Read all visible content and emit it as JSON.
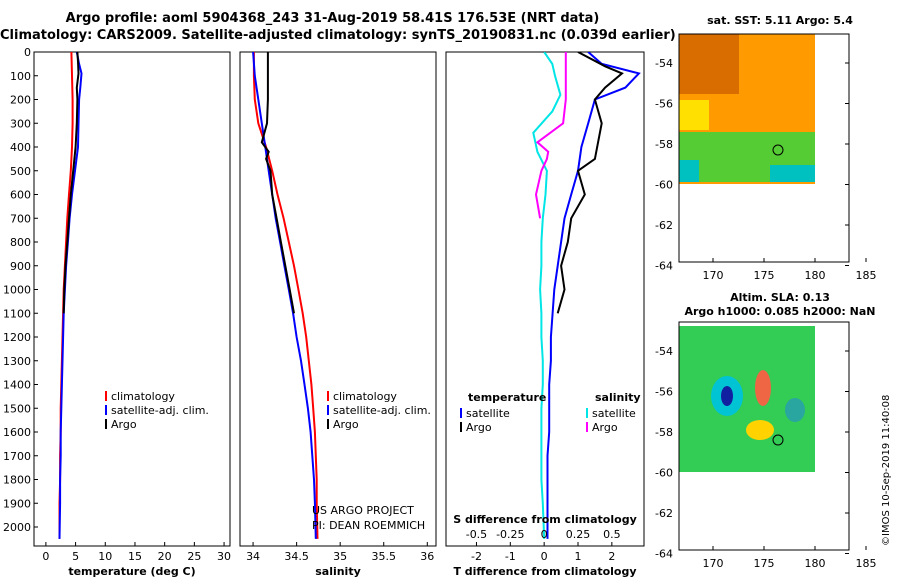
{
  "title": {
    "line1": "Argo profile: aoml 5904368_243 31-Aug-2019 58.41S 176.53E (NRT data)",
    "line2": "Climatology: CARS2009. Satellite-adjusted climatology: synTS_20190831.nc (0.039d earlier)"
  },
  "sst_map": {
    "title": "sat. SST: 5.11 Argo: 5.4",
    "xticks": [
      "170",
      "175",
      "180",
      "185"
    ],
    "yticks": [
      "-54",
      "-56",
      "-58",
      "-60",
      "-62",
      "-64"
    ]
  },
  "sla_map": {
    "title_line1": "Altim. SLA: 0.13",
    "title_line2": "Argo h1000: 0.085 h2000: NaN",
    "xticks": [
      "170",
      "175",
      "180",
      "185"
    ],
    "yticks": [
      "-54",
      "-56",
      "-58",
      "-60",
      "-62",
      "-64"
    ]
  },
  "credits": {
    "line1": "US ARGO PROJECT",
    "line2": "PI: DEAN ROEMMICH",
    "timestamp": "©IMOS 10-Sep-2019 11:40:08"
  },
  "colors": {
    "climatology": "#ff0000",
    "satellite": "#0000ff",
    "argo": "#000000",
    "salinity_satellite": "#00e5e5",
    "salinity_argo": "#ff00ff"
  },
  "chart_data": [
    {
      "type": "line",
      "xlabel": "temperature (deg C)",
      "xticks": [
        "0",
        "5",
        "10",
        "15",
        "20",
        "25",
        "30"
      ],
      "xlim": [
        -2,
        31
      ],
      "ylim": [
        0,
        2080
      ],
      "yticks": [
        "0",
        "100",
        "200",
        "300",
        "400",
        "500",
        "600",
        "700",
        "800",
        "900",
        "1000",
        "1100",
        "1200",
        "1300",
        "1400",
        "1500",
        "1600",
        "1700",
        "1800",
        "1900",
        "2000"
      ],
      "legend": [
        "climatology",
        "satellite-adj. clim.",
        "Argo"
      ],
      "series": [
        {
          "name": "climatology",
          "color": "#ff0000",
          "points": [
            [
              4.3,
              0
            ],
            [
              4.4,
              100
            ],
            [
              4.5,
              200
            ],
            [
              4.5,
              300
            ],
            [
              4.4,
              400
            ],
            [
              4.2,
              500
            ],
            [
              3.9,
              600
            ],
            [
              3.6,
              700
            ],
            [
              3.4,
              800
            ],
            [
              3.2,
              900
            ],
            [
              3.0,
              1000
            ],
            [
              2.9,
              1100
            ],
            [
              2.8,
              1200
            ],
            [
              2.7,
              1300
            ],
            [
              2.6,
              1400
            ],
            [
              2.5,
              1500
            ],
            [
              2.5,
              1600
            ],
            [
              2.4,
              1700
            ],
            [
              2.4,
              1800
            ],
            [
              2.3,
              1900
            ],
            [
              2.3,
              2050
            ]
          ]
        },
        {
          "name": "satellite-adj. clim.",
          "color": "#0000ff",
          "points": [
            [
              5.2,
              0
            ],
            [
              5.6,
              50
            ],
            [
              6.0,
              90
            ],
            [
              5.8,
              150
            ],
            [
              5.6,
              200
            ],
            [
              5.5,
              300
            ],
            [
              5.4,
              400
            ],
            [
              4.9,
              500
            ],
            [
              4.4,
              600
            ],
            [
              4.0,
              700
            ],
            [
              3.7,
              800
            ],
            [
              3.4,
              900
            ],
            [
              3.2,
              1000
            ],
            [
              3.0,
              1100
            ],
            [
              2.9,
              1200
            ],
            [
              2.8,
              1300
            ],
            [
              2.7,
              1400
            ],
            [
              2.6,
              1500
            ],
            [
              2.5,
              1600
            ],
            [
              2.5,
              1700
            ],
            [
              2.4,
              1800
            ],
            [
              2.4,
              1900
            ],
            [
              2.3,
              2050
            ]
          ]
        },
        {
          "name": "Argo",
          "color": "#000000",
          "points": [
            [
              5.3,
              0
            ],
            [
              5.4,
              40
            ],
            [
              5.5,
              90
            ],
            [
              5.2,
              150
            ],
            [
              5.3,
              200
            ],
            [
              5.2,
              300
            ],
            [
              5.0,
              400
            ],
            [
              4.6,
              500
            ],
            [
              4.2,
              600
            ],
            [
              3.9,
              700
            ],
            [
              3.6,
              800
            ],
            [
              3.3,
              900
            ],
            [
              3.1,
              1000
            ],
            [
              3.0,
              1100
            ]
          ]
        }
      ]
    },
    {
      "type": "line",
      "xlabel": "salinity",
      "xticks": [
        "34",
        "34.5",
        "35",
        "35.5",
        "36"
      ],
      "xlim": [
        33.85,
        36.1
      ],
      "ylim": [
        0,
        2080
      ],
      "legend": [
        "climatology",
        "satellite-adj. clim.",
        "Argo"
      ],
      "series": [
        {
          "name": "climatology",
          "color": "#ff0000",
          "points": [
            [
              34.01,
              0
            ],
            [
              34.01,
              100
            ],
            [
              34.02,
              200
            ],
            [
              34.06,
              300
            ],
            [
              34.15,
              400
            ],
            [
              34.22,
              500
            ],
            [
              34.28,
              600
            ],
            [
              34.35,
              700
            ],
            [
              34.41,
              800
            ],
            [
              34.47,
              900
            ],
            [
              34.52,
              1000
            ],
            [
              34.57,
              1100
            ],
            [
              34.61,
              1200
            ],
            [
              34.64,
              1300
            ],
            [
              34.67,
              1400
            ],
            [
              34.69,
              1500
            ],
            [
              34.71,
              1600
            ],
            [
              34.72,
              1700
            ],
            [
              34.73,
              1800
            ],
            [
              34.73,
              1900
            ],
            [
              34.74,
              2050
            ]
          ]
        },
        {
          "name": "satellite-adj. clim.",
          "color": "#0000ff",
          "points": [
            [
              34.0,
              0
            ],
            [
              34.02,
              100
            ],
            [
              34.06,
              200
            ],
            [
              34.1,
              300
            ],
            [
              34.14,
              400
            ],
            [
              34.18,
              500
            ],
            [
              34.22,
              600
            ],
            [
              34.26,
              700
            ],
            [
              34.31,
              800
            ],
            [
              34.36,
              900
            ],
            [
              34.41,
              1000
            ],
            [
              34.46,
              1100
            ],
            [
              34.5,
              1200
            ],
            [
              34.55,
              1300
            ],
            [
              34.59,
              1400
            ],
            [
              34.63,
              1500
            ],
            [
              34.66,
              1600
            ],
            [
              34.68,
              1700
            ],
            [
              34.7,
              1800
            ],
            [
              34.71,
              1900
            ],
            [
              34.72,
              2050
            ]
          ]
        },
        {
          "name": "Argo",
          "color": "#000000",
          "points": [
            [
              34.17,
              0
            ],
            [
              34.17,
              100
            ],
            [
              34.17,
              200
            ],
            [
              34.16,
              300
            ],
            [
              34.1,
              380
            ],
            [
              34.18,
              420
            ],
            [
              34.15,
              450
            ],
            [
              34.2,
              500
            ],
            [
              34.22,
              600
            ],
            [
              34.27,
              700
            ],
            [
              34.32,
              800
            ],
            [
              34.37,
              900
            ],
            [
              34.42,
              1000
            ],
            [
              34.47,
              1100
            ]
          ]
        }
      ]
    },
    {
      "type": "line",
      "xlabel": "T difference from climatology",
      "xlabel_top": "S difference from climatology",
      "xticks": [
        "-2",
        "-1",
        "0",
        "1",
        "2"
      ],
      "xticks_top": [
        "-0.5",
        "-0.25",
        "0",
        "0.25",
        "0.5"
      ],
      "xlim": [
        -2.9,
        2.95
      ],
      "ylim": [
        0,
        2080
      ],
      "legend_left": {
        "title": "temperature",
        "items": [
          "satellite",
          "Argo"
        ]
      },
      "legend_right": {
        "title": "salinity",
        "items": [
          "satellite",
          "Argo"
        ]
      },
      "series": [
        {
          "name": "temperature satellite",
          "color": "#0000ff",
          "points": [
            [
              1.3,
              0
            ],
            [
              1.7,
              50
            ],
            [
              2.8,
              90
            ],
            [
              2.4,
              150
            ],
            [
              1.5,
              200
            ],
            [
              1.3,
              300
            ],
            [
              1.1,
              400
            ],
            [
              1.0,
              500
            ],
            [
              0.8,
              600
            ],
            [
              0.6,
              700
            ],
            [
              0.5,
              800
            ],
            [
              0.4,
              900
            ],
            [
              0.3,
              1000
            ],
            [
              0.25,
              1100
            ],
            [
              0.2,
              1200
            ],
            [
              0.2,
              1300
            ],
            [
              0.15,
              1400
            ],
            [
              0.15,
              1500
            ],
            [
              0.15,
              1600
            ],
            [
              0.1,
              1700
            ],
            [
              0.1,
              1800
            ],
            [
              0.1,
              1900
            ],
            [
              0.1,
              2050
            ]
          ]
        },
        {
          "name": "temperature Argo",
          "color": "#000000",
          "points": [
            [
              1.0,
              0
            ],
            [
              1.8,
              60
            ],
            [
              2.3,
              90
            ],
            [
              1.8,
              150
            ],
            [
              1.5,
              200
            ],
            [
              1.7,
              300
            ],
            [
              1.5,
              450
            ],
            [
              1.0,
              500
            ],
            [
              1.2,
              600
            ],
            [
              0.8,
              700
            ],
            [
              0.7,
              800
            ],
            [
              0.5,
              900
            ],
            [
              0.6,
              1000
            ],
            [
              0.4,
              1100
            ]
          ]
        },
        {
          "name": "salinity satellite",
          "color": "#00e5e5",
          "points": [
            [
              0,
              0
            ],
            [
              0.06,
              50
            ],
            [
              0.08,
              100
            ],
            [
              0.12,
              180
            ],
            [
              0.06,
              250
            ],
            [
              -0.08,
              340
            ],
            [
              -0.05,
              420
            ],
            [
              0.02,
              500
            ],
            [
              0.01,
              600
            ],
            [
              -0.01,
              700
            ],
            [
              -0.02,
              800
            ],
            [
              -0.02,
              900
            ],
            [
              -0.03,
              1000
            ],
            [
              -0.02,
              1100
            ],
            [
              -0.02,
              1200
            ],
            [
              -0.01,
              1300
            ],
            [
              -0.01,
              1400
            ],
            [
              -0.02,
              1500
            ],
            [
              -0.02,
              1600
            ],
            [
              -0.02,
              1700
            ],
            [
              -0.02,
              1800
            ],
            [
              -0.01,
              1900
            ],
            [
              0,
              2050
            ]
          ]
        },
        {
          "name": "salinity Argo",
          "color": "#ff00ff",
          "points": [
            [
              0.16,
              0
            ],
            [
              0.16,
              100
            ],
            [
              0.16,
              200
            ],
            [
              0.14,
              300
            ],
            [
              -0.05,
              380
            ],
            [
              0.03,
              420
            ],
            [
              0.02,
              450
            ],
            [
              -0.02,
              500
            ],
            [
              -0.06,
              600
            ],
            [
              -0.03,
              700
            ]
          ]
        }
      ]
    }
  ]
}
